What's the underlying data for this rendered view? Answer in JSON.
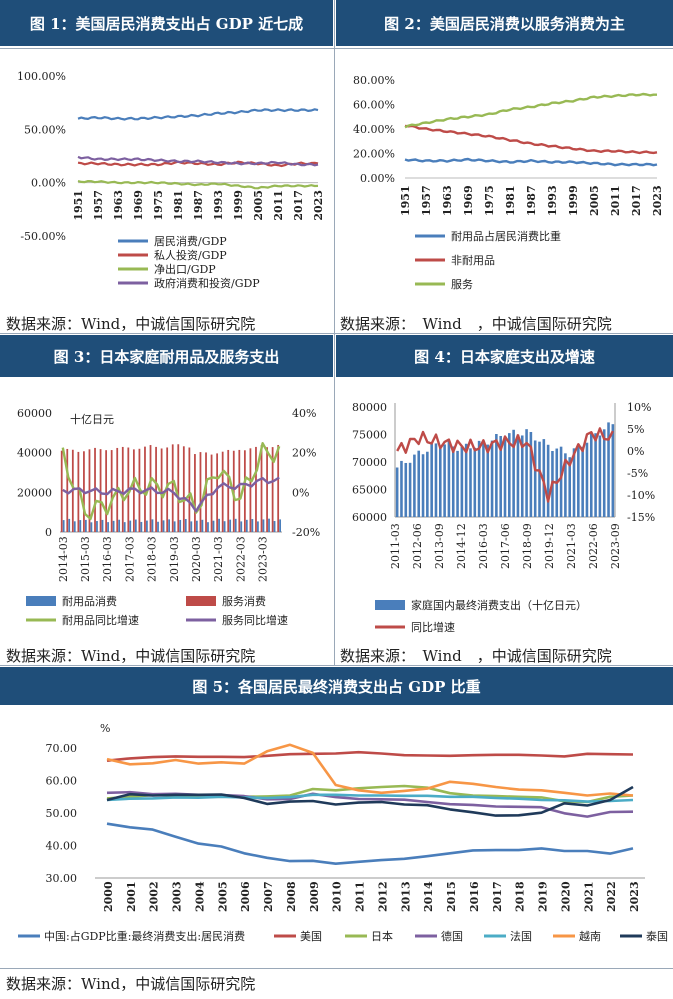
{
  "panels": {
    "p1": {
      "title": "图 1：美国居民消费支出占 GDP 近七成",
      "source": "数据来源：Wind，中诚信国际研究院"
    },
    "p2": {
      "title": "图 2：美国居民消费以服务消费为主",
      "source": "数据来源：　Wind　，中诚信国际研究院"
    },
    "p3": {
      "title": "图 3：日本家庭耐用品及服务支出",
      "source": "数据来源：Wind，中诚信国际研究院"
    },
    "p4": {
      "title": "图 4：日本家庭支出及增速",
      "source": "数据来源：　Wind　，中诚信国际研究院"
    },
    "p5": {
      "title": "图 5：各国居民最终消费支出占 GDP 比重",
      "source": "数据来源：Wind，中诚信国际研究院"
    }
  },
  "chart_data": [
    {
      "type": "line",
      "x": [
        "1951",
        "1957",
        "1963",
        "1969",
        "1975",
        "1981",
        "1987",
        "1993",
        "1999",
        "2005",
        "2011",
        "2017",
        "2023"
      ],
      "ylim": [
        -50,
        100
      ],
      "yticks": [
        "100.00%",
        "50.00%",
        "0.00%",
        "-50.00%"
      ],
      "series": [
        {
          "name": "居民消费/GDP",
          "color": "#4a7ebb",
          "values": [
            60,
            61,
            60,
            60,
            61,
            62,
            63,
            65,
            66,
            68,
            68,
            68,
            68
          ]
        },
        {
          "name": "私人投资/GDP",
          "color": "#be4b48",
          "values": [
            18,
            18,
            17,
            17,
            17,
            19,
            18,
            17,
            19,
            18,
            16,
            18,
            18
          ]
        },
        {
          "name": "净出口/GDP",
          "color": "#98b954",
          "values": [
            1,
            1,
            0,
            0,
            0,
            -1,
            -2,
            -1,
            -3,
            -5,
            -3,
            -3,
            -3
          ]
        },
        {
          "name": "政府消费和投资/GDP",
          "color": "#7d60a0",
          "values": [
            24,
            22,
            22,
            22,
            21,
            20,
            20,
            19,
            18,
            18,
            19,
            17,
            17
          ]
        }
      ]
    },
    {
      "type": "line",
      "x": [
        "1951",
        "1957",
        "1963",
        "1969",
        "1975",
        "1981",
        "1987",
        "1993",
        "1999",
        "2005",
        "2011",
        "2017",
        "2023"
      ],
      "ylim": [
        0,
        80
      ],
      "yticks": [
        "80.00%",
        "60.00%",
        "40.00%",
        "20.00%",
        "0.00%"
      ],
      "series": [
        {
          "name": "耐用品占居民消费比重",
          "color": "#4a7ebb",
          "values": [
            15,
            14,
            14,
            15,
            14,
            13,
            14,
            13,
            13,
            12,
            11,
            11,
            11
          ]
        },
        {
          "name": "非耐用品",
          "color": "#be4b48",
          "values": [
            43,
            40,
            38,
            36,
            34,
            31,
            28,
            26,
            24,
            22,
            22,
            21,
            21
          ]
        },
        {
          "name": "服务",
          "color": "#98b954",
          "values": [
            42,
            45,
            48,
            50,
            52,
            56,
            58,
            61,
            63,
            66,
            67,
            68,
            68
          ]
        }
      ]
    },
    {
      "type": "bar",
      "categories": [
        "2014-03",
        "2015-03",
        "2016-03",
        "2017-03",
        "2018-03",
        "2019-03",
        "2020-03",
        "2021-03",
        "2022-03",
        "2023-03"
      ],
      "unit": "十亿日元",
      "y_left": [
        "60000",
        "40000",
        "20000",
        "0"
      ],
      "y_right": [
        "40%",
        "20%",
        "0%",
        "-20%"
      ],
      "series": [
        {
          "name": "耐用品消费",
          "color": "#4a7ebb",
          "values": [
            6000,
            5500,
            5600,
            5700,
            5800,
            6000,
            5600,
            6100,
            6000,
            6200
          ]
        },
        {
          "name": "服务消费",
          "color": "#be4b48",
          "values": [
            41000,
            41500,
            42000,
            42500,
            43000,
            43500,
            39500,
            40500,
            42000,
            43500
          ]
        },
        {
          "name": "耐用品同比增速",
          "color": "#98b954",
          "values": [
            18,
            -10,
            -6,
            2,
            3,
            2,
            -8,
            12,
            -3,
            20
          ]
        },
        {
          "name": "服务同比增速",
          "color": "#7d60a0",
          "values": [
            1,
            1,
            0,
            1,
            1,
            0,
            -8,
            3,
            3,
            6
          ]
        }
      ]
    },
    {
      "type": "bar",
      "categories": [
        "2011-03",
        "2012-06",
        "2013-09",
        "2014-12",
        "2016-03",
        "2017-06",
        "2018-09",
        "2019-12",
        "2021-03",
        "2022-06",
        "2023-09"
      ],
      "y_left": [
        "80000",
        "75000",
        "70000",
        "65000",
        "60000"
      ],
      "y_right": [
        "10%",
        "5%",
        "0%",
        "-5%",
        "-10%",
        "-15%"
      ],
      "series": [
        {
          "name": "家庭国内最终消费支出（十亿日元）",
          "color": "#4a7ebb",
          "values": [
            69000,
            71500,
            73500,
            72500,
            73500,
            75000,
            75500,
            73000,
            71500,
            74500,
            77000
          ]
        },
        {
          "name": "同比增速",
          "color": "#be4b48",
          "values": [
            0,
            3,
            2,
            1,
            1,
            2,
            2,
            -10,
            -2,
            4,
            3
          ]
        }
      ]
    },
    {
      "type": "line",
      "ylabel": "%",
      "x": [
        "2000",
        "2001",
        "2002",
        "2003",
        "2004",
        "2005",
        "2006",
        "2007",
        "2008",
        "2009",
        "2010",
        "2011",
        "2012",
        "2013",
        "2014",
        "2015",
        "2016",
        "2017",
        "2018",
        "2019",
        "2020",
        "2021",
        "2022",
        "2023"
      ],
      "ylim": [
        30,
        70
      ],
      "yticks": [
        "70.00",
        "60.00",
        "50.00",
        "40.00",
        "30.00"
      ],
      "series": [
        {
          "name": "中国:占GDP比重:最终消费支出:居民消费",
          "color": "#4a7ebb",
          "values": [
            46.7,
            45.6,
            44.9,
            42.7,
            40.6,
            39.7,
            37.6,
            36.2,
            35.2,
            35.3,
            34.4,
            35.0,
            35.5,
            35.9,
            36.7,
            37.6,
            38.5,
            38.6,
            38.6,
            39.1,
            38.3,
            38.3,
            37.5,
            39.1
          ]
        },
        {
          "name": "美国",
          "color": "#be4b48",
          "values": [
            66.1,
            66.8,
            67.2,
            67.4,
            67.3,
            67.3,
            67.2,
            67.6,
            68.1,
            68.2,
            68.3,
            68.7,
            68.3,
            67.8,
            67.7,
            67.6,
            67.8,
            67.9,
            67.9,
            67.7,
            67.4,
            68.2,
            68.1,
            68.0
          ]
        },
        {
          "name": "日本",
          "color": "#98b954",
          "values": [
            54.5,
            55.0,
            55.5,
            55.4,
            55.2,
            55.4,
            55.0,
            55.1,
            55.4,
            57.4,
            57.0,
            57.6,
            58.0,
            58.3,
            57.8,
            56.1,
            55.4,
            55.2,
            55.0,
            54.8,
            53.6,
            53.4,
            55.0,
            55.4
          ]
        },
        {
          "name": "德国",
          "color": "#7d60a0",
          "values": [
            56.2,
            56.4,
            55.8,
            55.9,
            55.6,
            55.5,
            55.2,
            54.2,
            54.3,
            55.9,
            54.9,
            54.3,
            54.2,
            54.1,
            53.4,
            52.7,
            52.5,
            52.0,
            51.9,
            51.8,
            49.9,
            48.9,
            50.3,
            50.4
          ]
        },
        {
          "name": "法国",
          "color": "#4bacc6",
          "values": [
            54.0,
            54.4,
            54.5,
            54.8,
            54.7,
            55.0,
            54.8,
            54.6,
            54.9,
            55.6,
            55.6,
            55.4,
            55.4,
            55.3,
            55.3,
            55.0,
            55.0,
            54.6,
            54.4,
            54.0,
            53.9,
            53.5,
            53.7,
            54.0
          ]
        },
        {
          "name": "越南",
          "color": "#f79646",
          "values": [
            66.6,
            65.0,
            65.3,
            66.3,
            65.2,
            65.6,
            65.2,
            69.0,
            71.0,
            68.5,
            58.6,
            57.0,
            56.2,
            56.8,
            57.5,
            59.6,
            59.0,
            58.0,
            57.2,
            57.0,
            56.2,
            55.4,
            56.0,
            55.4
          ]
        },
        {
          "name": "泰国",
          "color": "#1f3a5a",
          "values": [
            54.0,
            55.8,
            55.4,
            55.6,
            55.6,
            55.7,
            54.6,
            52.8,
            53.5,
            53.7,
            52.6,
            53.2,
            53.4,
            52.6,
            52.4,
            51.1,
            50.2,
            49.2,
            49.3,
            50.1,
            53.0,
            52.3,
            54.0,
            58.0
          ]
        }
      ]
    }
  ]
}
